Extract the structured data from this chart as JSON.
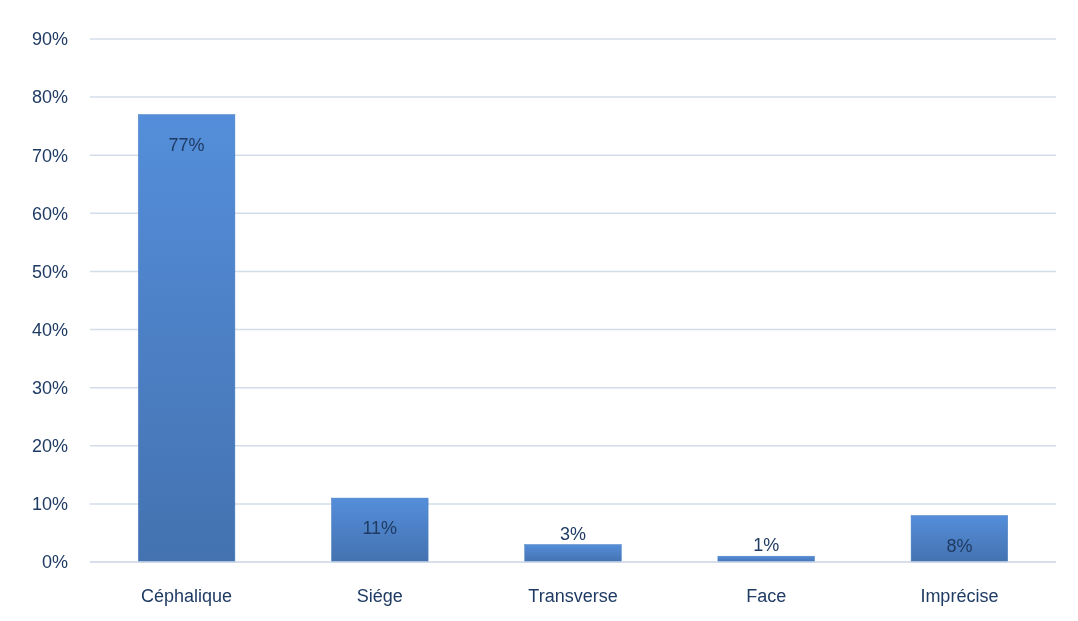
{
  "chart_data": {
    "type": "bar",
    "categories": [
      "Céphalique",
      "Siége",
      "Transverse",
      "Face",
      "Imprécise"
    ],
    "values": [
      77,
      11,
      3,
      1,
      8
    ],
    "value_labels": [
      "77%",
      "11%",
      "3%",
      "1%",
      "8%"
    ],
    "color": "#4a7dc0",
    "ylim": [
      0,
      90
    ],
    "yticks": [
      {
        "value": 0,
        "label": "0%"
      },
      {
        "value": 10,
        "label": "10%"
      },
      {
        "value": 20,
        "label": "20%"
      },
      {
        "value": 30,
        "label": "30%"
      },
      {
        "value": 40,
        "label": "40%"
      },
      {
        "value": 50,
        "label": "50%"
      },
      {
        "value": 60,
        "label": "60%"
      },
      {
        "value": 70,
        "label": "70%"
      },
      {
        "value": 80,
        "label": "80%"
      },
      {
        "value": 90,
        "label": "90%"
      }
    ],
    "grid": "y"
  }
}
